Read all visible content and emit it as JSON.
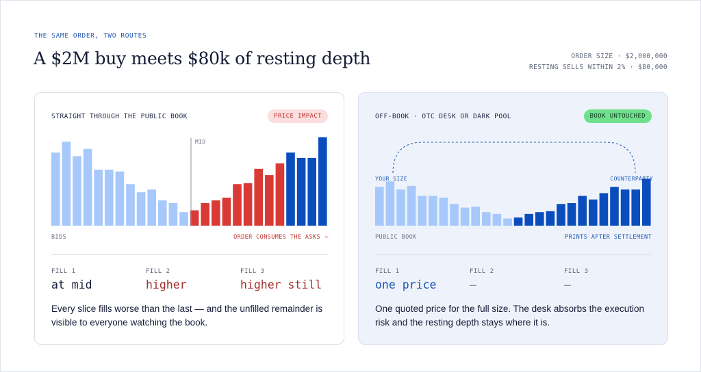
{
  "header": {
    "eyebrow": "THE SAME ORDER, TWO ROUTES",
    "title": "A $2M buy meets $80k of resting depth",
    "meta_line1": "ORDER SIZE · $2,000,000",
    "meta_line2": "RESTING SELLS WITHIN 2% · $80,000"
  },
  "colors": {
    "bid_light": "#a6c8fb",
    "ask_red": "#d93a35",
    "ask_blue": "#0a4dbd",
    "accent_blue": "#1c55b5"
  },
  "left_card": {
    "title": "STRAIGHT THROUGH THE PUBLIC BOOK",
    "badge": "PRICE IMPACT",
    "mid_label": "MID",
    "axis_left": "BIDS",
    "axis_right": "ORDER CONSUMES THE ASKS →",
    "fills": [
      {
        "label": "FILL 1",
        "value": "at mid"
      },
      {
        "label": "FILL 2",
        "value": "higher"
      },
      {
        "label": "FILL 3",
        "value": "higher still"
      }
    ],
    "description": "Every slice fills worse than the last — and the unfilled remainder is visible to everyone watching the book."
  },
  "right_card": {
    "title": "OFF-BOOK · OTC DESK OR DARK POOL",
    "badge": "BOOK UNTOUCHED",
    "your_size_label": "YOUR SIZE",
    "counterparty_label": "COUNTERPARTY",
    "axis_left": "PUBLIC BOOK",
    "axis_right": "PRINTS AFTER SETTLEMENT",
    "fills": [
      {
        "label": "FILL 1",
        "value": "one price"
      },
      {
        "label": "FILL 2",
        "value": "—"
      },
      {
        "label": "FILL 3",
        "value": "—"
      }
    ],
    "description": "One quoted price for the full size. The desk absorbs the execution risk and the resting depth stays where it is."
  },
  "chart_data": [
    {
      "type": "bar",
      "bids": [
        0.81,
        0.93,
        0.77,
        0.85,
        0.62,
        0.62,
        0.6,
        0.46,
        0.37,
        0.4,
        0.28,
        0.25,
        0.15
      ],
      "asks": [
        0.17,
        0.25,
        0.28,
        0.31,
        0.46,
        0.47,
        0.63,
        0.56,
        0.69
      ],
      "asks_beyond": [
        0.81,
        0.75,
        0.75,
        0.98
      ],
      "ylim": [
        0,
        1
      ]
    },
    {
      "type": "bar",
      "bids": [
        0.43,
        0.49,
        0.4,
        0.44,
        0.33,
        0.33,
        0.31,
        0.24,
        0.2,
        0.21,
        0.15,
        0.13,
        0.08
      ],
      "asks": [
        0.09,
        0.13,
        0.15,
        0.16,
        0.24,
        0.25,
        0.33,
        0.29,
        0.36,
        0.43,
        0.4,
        0.4,
        0.52
      ],
      "ylim": [
        0,
        1
      ]
    }
  ]
}
